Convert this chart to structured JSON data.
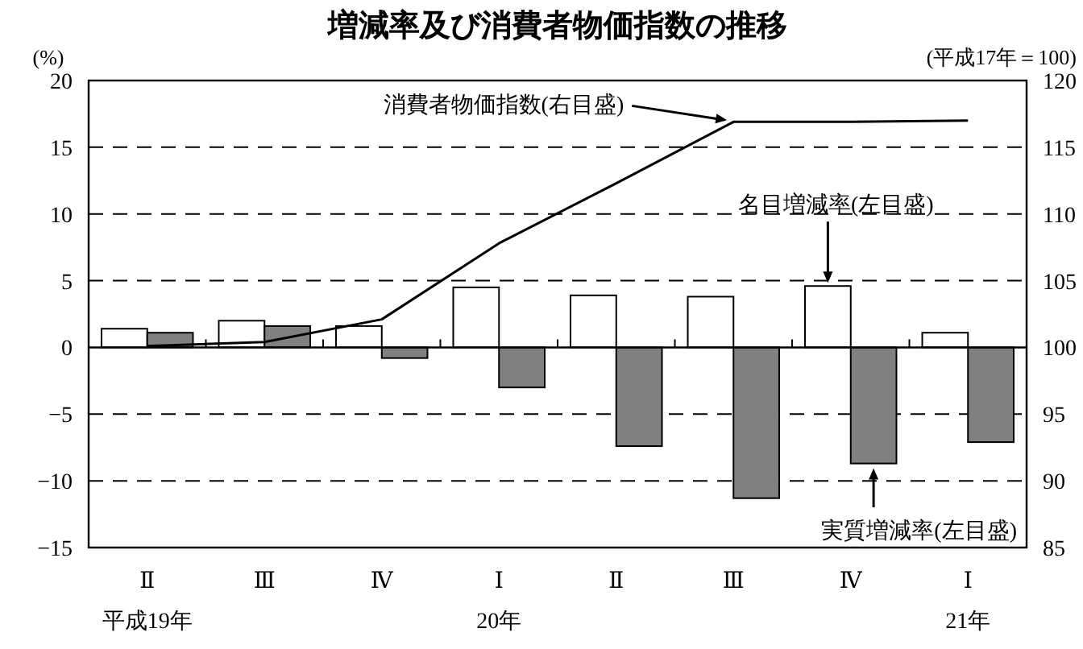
{
  "chart_data": {
    "type": "bar",
    "title": "増減率及び消費者物価指数の推移",
    "ylabel": "(%)",
    "y2label": "(平成17年＝100)",
    "categories": [
      "Ⅱ",
      "Ⅲ",
      "Ⅳ",
      "Ⅰ",
      "Ⅱ",
      "Ⅲ",
      "Ⅳ",
      "Ⅰ"
    ],
    "series": [
      {
        "name": "消費者物価指数(右目盛)",
        "type": "line",
        "axis": "y2",
        "color": "#000000",
        "values": [
          100.1,
          100.4,
          102.1,
          107.8,
          112.3,
          116.9,
          116.9,
          117.0
        ]
      },
      {
        "name": "名目増減率(左目盛)",
        "color": "#ffffff",
        "values": [
          1.4,
          2.0,
          1.6,
          4.5,
          3.9,
          3.8,
          4.6,
          1.1
        ]
      },
      {
        "name": "実質増減率(左目盛)",
        "color": "#808080",
        "values": [
          1.1,
          1.6,
          -0.8,
          -3.0,
          -7.4,
          -11.3,
          -8.7,
          -7.1
        ]
      }
    ],
    "ylim": [
      -15,
      20
    ],
    "yticks": [
      -15,
      -10,
      -5,
      0,
      5,
      10,
      15,
      20
    ],
    "y2lim": [
      85,
      120
    ],
    "y2ticks": [
      85,
      90,
      95,
      100,
      105,
      110,
      115,
      120
    ],
    "grid": "y",
    "annotations": [
      "平成19年",
      "20年",
      "21年"
    ]
  }
}
